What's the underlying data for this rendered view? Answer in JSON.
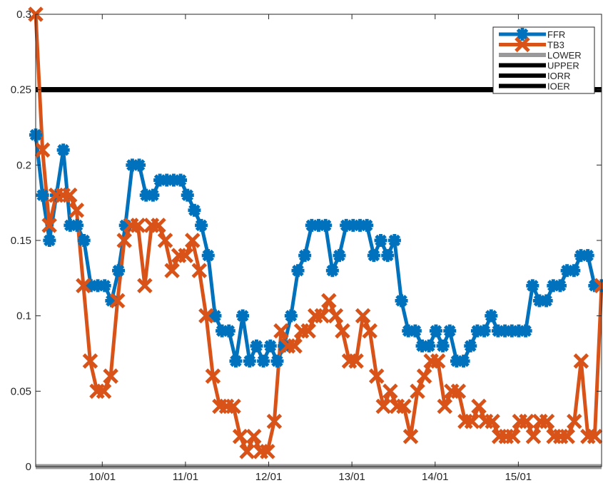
{
  "chart_data": {
    "type": "line",
    "title": "",
    "xlabel": "",
    "ylabel": "",
    "xlim": [
      0,
      136
    ],
    "ylim": [
      0,
      0.3
    ],
    "yticks": [
      0,
      0.05,
      0.1,
      0.15,
      0.2,
      0.25,
      0.3
    ],
    "ytick_labels": [
      "0",
      "0.05",
      "0.1",
      "0.15",
      "0.2",
      "0.25",
      "0.3"
    ],
    "xticks": [
      16,
      36,
      56,
      76,
      96,
      116
    ],
    "xtick_labels": [
      "10/01",
      "11/01",
      "12/01",
      "13/01",
      "14/01",
      "15/01"
    ],
    "grid": false,
    "legend_position": "top-right",
    "series": [
      {
        "name": "FFR",
        "color": "#0072bd",
        "marker": "asterisk",
        "values": [
          0.22,
          0.18,
          0.15,
          0.18,
          0.21,
          0.16,
          0.16,
          0.15,
          0.12,
          0.12,
          0.12,
          0.11,
          0.13,
          0.16,
          0.2,
          0.2,
          0.18,
          0.18,
          0.19,
          0.19,
          0.19,
          0.19,
          0.18,
          0.17,
          0.16,
          0.14,
          0.1,
          0.09,
          0.09,
          0.07,
          0.1,
          0.07,
          0.08,
          0.07,
          0.08,
          0.07,
          0.08,
          0.1,
          0.13,
          0.14,
          0.16,
          0.16,
          0.16,
          0.13,
          0.14,
          0.16,
          0.16,
          0.16,
          0.16,
          0.14,
          0.15,
          0.14,
          0.15,
          0.11,
          0.09,
          0.09,
          0.08,
          0.08,
          0.09,
          0.08,
          0.09,
          0.07,
          0.07,
          0.08,
          0.09,
          0.09,
          0.1,
          0.09,
          0.09,
          0.09,
          0.09,
          0.09,
          0.12,
          0.11,
          0.11,
          0.12,
          0.12,
          0.13,
          0.13,
          0.14,
          0.14,
          0.12,
          0.12
        ]
      },
      {
        "name": "TB3",
        "color": "#d95319",
        "marker": "x",
        "values": [
          0.3,
          0.21,
          0.16,
          0.18,
          0.18,
          0.18,
          0.17,
          0.12,
          0.07,
          0.05,
          0.05,
          0.06,
          0.11,
          0.15,
          0.16,
          0.16,
          0.12,
          0.16,
          0.16,
          0.15,
          0.13,
          0.14,
          0.14,
          0.15,
          0.13,
          0.1,
          0.06,
          0.04,
          0.04,
          0.04,
          0.02,
          0.01,
          0.02,
          0.01,
          0.01,
          0.03,
          0.09,
          0.08,
          0.08,
          0.09,
          0.09,
          0.1,
          0.1,
          0.11,
          0.1,
          0.09,
          0.07,
          0.07,
          0.1,
          0.09,
          0.06,
          0.04,
          0.05,
          0.04,
          0.04,
          0.02,
          0.05,
          0.06,
          0.07,
          0.07,
          0.04,
          0.05,
          0.05,
          0.03,
          0.03,
          0.04,
          0.03,
          0.03,
          0.02,
          0.02,
          0.02,
          0.03,
          0.03,
          0.02,
          0.03,
          0.03,
          0.02,
          0.02,
          0.02,
          0.03,
          0.07,
          0.02,
          0.02,
          0.12
        ]
      },
      {
        "name": "LOWER",
        "color": "#999999",
        "constant": 0
      },
      {
        "name": "UPPER",
        "color": "#000000",
        "constant": 0.25
      },
      {
        "name": "IORR",
        "color": "#000000",
        "constant": 0.25
      },
      {
        "name": "IOER",
        "color": "#000000",
        "constant": 0.25
      }
    ]
  }
}
